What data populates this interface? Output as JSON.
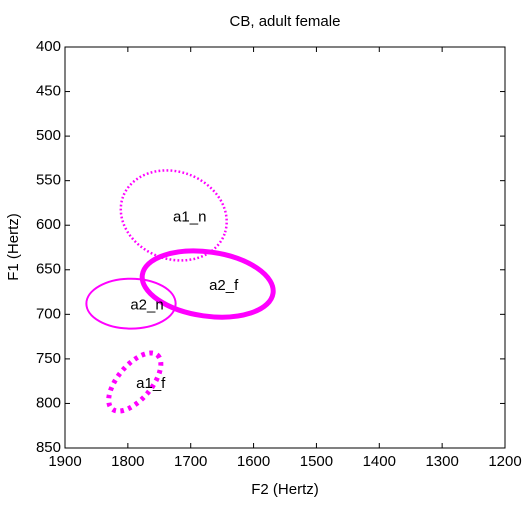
{
  "chart_data": {
    "type": "ellipse",
    "title": "CB, adult female",
    "x_label": "F2 (Hertz)",
    "y_label": "F1 (Hertz)",
    "xlim": [
      1900,
      1200
    ],
    "ylim": [
      850,
      400
    ],
    "xticks": [
      1900,
      1800,
      1700,
      1600,
      1500,
      1400,
      1300,
      1200
    ],
    "yticks": [
      400,
      450,
      500,
      550,
      600,
      650,
      700,
      750,
      800,
      850
    ],
    "grid": false,
    "series": [
      {
        "name": "a1_n",
        "color": "#ff00ff",
        "linestyle": "dotted",
        "linewidth": 2.5,
        "cx": 1727,
        "cy": 589,
        "rx": 86,
        "ry": 49,
        "angle": 20
      },
      {
        "name": "a2_f",
        "color": "#ff00ff",
        "linestyle": "solid",
        "linewidth": 5,
        "cx": 1673,
        "cy": 666,
        "rx": 105,
        "ry": 36,
        "angle": 8
      },
      {
        "name": "a2_n",
        "color": "#ff00ff",
        "linestyle": "solid",
        "linewidth": 2,
        "cx": 1795,
        "cy": 688,
        "rx": 71,
        "ry": 28,
        "angle": 0
      },
      {
        "name": "a1_f",
        "color": "#ff00ff",
        "linestyle": "dotted",
        "linewidth": 5,
        "cx": 1789,
        "cy": 776,
        "rx": 56,
        "ry": 19,
        "angle": -50
      }
    ]
  }
}
